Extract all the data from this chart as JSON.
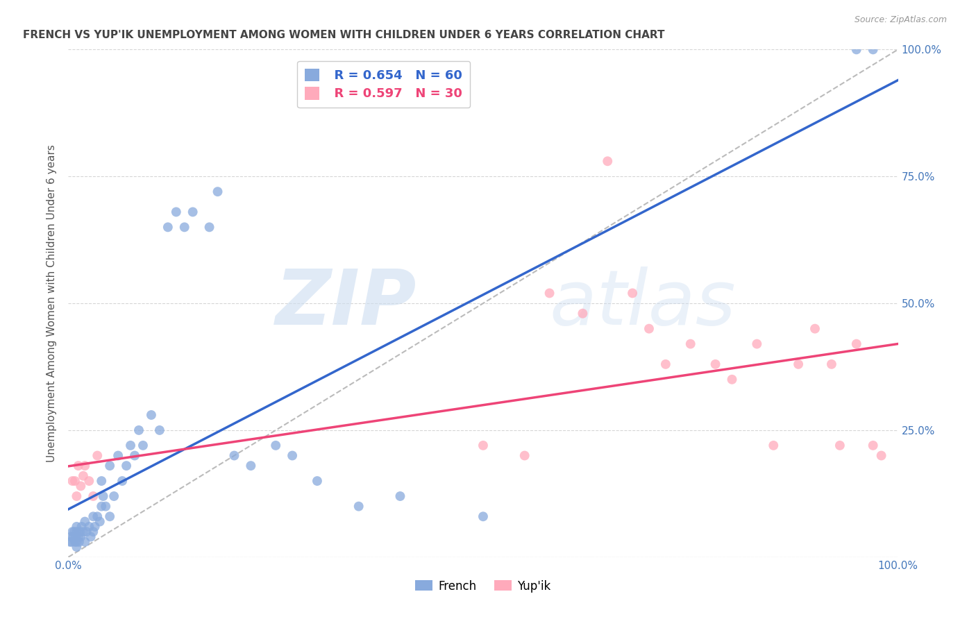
{
  "title": "FRENCH VS YUP'IK UNEMPLOYMENT AMONG WOMEN WITH CHILDREN UNDER 6 YEARS CORRELATION CHART",
  "source": "Source: ZipAtlas.com",
  "ylabel": "Unemployment Among Women with Children Under 6 years",
  "watermark_zip": "ZIP",
  "watermark_atlas": "atlas",
  "legend_blue_r": "R = 0.654",
  "legend_blue_n": "N = 60",
  "legend_pink_r": "R = 0.597",
  "legend_pink_n": "N = 30",
  "legend_label_blue": "French",
  "legend_label_pink": "Yup'ik",
  "blue_scatter_color": "#88AADD",
  "pink_scatter_color": "#FFAABB",
  "blue_line_color": "#3366CC",
  "pink_line_color": "#EE4477",
  "ref_line_color": "#BBBBBB",
  "background_color": "#FFFFFF",
  "grid_color": "#CCCCCC",
  "axis_tick_color": "#4477BB",
  "title_color": "#444444",
  "source_color": "#999999",
  "ylabel_color": "#555555",
  "french_x": [
    0.002,
    0.003,
    0.004,
    0.005,
    0.006,
    0.007,
    0.008,
    0.009,
    0.01,
    0.01,
    0.01,
    0.01,
    0.012,
    0.013,
    0.014,
    0.015,
    0.016,
    0.018,
    0.02,
    0.02,
    0.022,
    0.025,
    0.027,
    0.03,
    0.03,
    0.032,
    0.035,
    0.038,
    0.04,
    0.04,
    0.042,
    0.045,
    0.05,
    0.05,
    0.055,
    0.06,
    0.065,
    0.07,
    0.075,
    0.08,
    0.085,
    0.09,
    0.1,
    0.11,
    0.12,
    0.13,
    0.14,
    0.15,
    0.17,
    0.18,
    0.2,
    0.22,
    0.25,
    0.27,
    0.3,
    0.35,
    0.4,
    0.5,
    0.95,
    0.97
  ],
  "french_y": [
    0.03,
    0.04,
    0.03,
    0.05,
    0.04,
    0.05,
    0.03,
    0.04,
    0.02,
    0.03,
    0.05,
    0.06,
    0.04,
    0.03,
    0.05,
    0.04,
    0.06,
    0.05,
    0.03,
    0.07,
    0.05,
    0.06,
    0.04,
    0.05,
    0.08,
    0.06,
    0.08,
    0.07,
    0.1,
    0.15,
    0.12,
    0.1,
    0.08,
    0.18,
    0.12,
    0.2,
    0.15,
    0.18,
    0.22,
    0.2,
    0.25,
    0.22,
    0.28,
    0.25,
    0.65,
    0.68,
    0.65,
    0.68,
    0.65,
    0.72,
    0.2,
    0.18,
    0.22,
    0.2,
    0.15,
    0.1,
    0.12,
    0.08,
    1.0,
    1.0
  ],
  "yupik_x": [
    0.005,
    0.008,
    0.01,
    0.012,
    0.015,
    0.018,
    0.02,
    0.025,
    0.03,
    0.035,
    0.5,
    0.55,
    0.58,
    0.62,
    0.65,
    0.68,
    0.7,
    0.72,
    0.75,
    0.78,
    0.8,
    0.83,
    0.85,
    0.88,
    0.9,
    0.92,
    0.93,
    0.95,
    0.97,
    0.98
  ],
  "yupik_y": [
    0.15,
    0.15,
    0.12,
    0.18,
    0.14,
    0.16,
    0.18,
    0.15,
    0.12,
    0.2,
    0.22,
    0.2,
    0.52,
    0.48,
    0.78,
    0.52,
    0.45,
    0.38,
    0.42,
    0.38,
    0.35,
    0.42,
    0.22,
    0.38,
    0.45,
    0.38,
    0.22,
    0.42,
    0.22,
    0.2
  ],
  "xlim": [
    0.0,
    1.0
  ],
  "ylim": [
    0.0,
    1.0
  ],
  "xticks": [
    0.0,
    0.25,
    0.5,
    0.75,
    1.0
  ],
  "yticks": [
    0.0,
    0.25,
    0.5,
    0.75,
    1.0
  ],
  "xtick_labels": [
    "0.0%",
    "",
    "",
    "",
    "100.0%"
  ],
  "ytick_labels_right": [
    "",
    "25.0%",
    "50.0%",
    "75.0%",
    "100.0%"
  ]
}
